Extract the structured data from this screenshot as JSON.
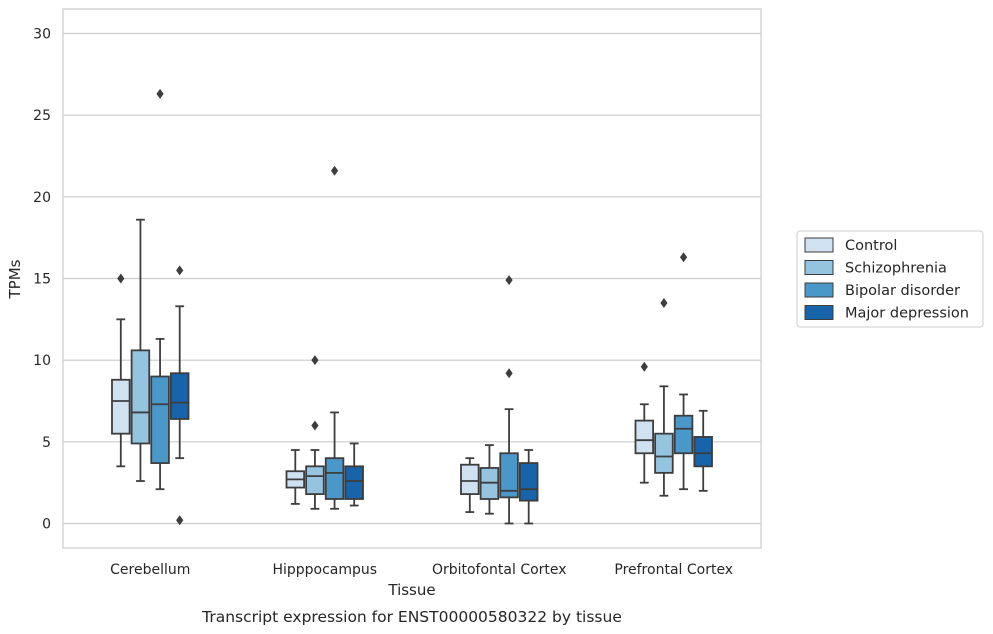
{
  "chart_data": {
    "type": "boxplot",
    "xlabel": "Tissue",
    "ylabel": "TPMs",
    "caption": "Transcript expression for ENST00000580322 by tissue",
    "ylim": [
      -1.5,
      31.5
    ],
    "yticks": [
      0,
      5,
      10,
      15,
      20,
      25,
      30
    ],
    "grid": true,
    "legend_placement": "right",
    "categories": [
      "Cerebellum",
      "Hipppocampus",
      "Orbitofontal Cortex",
      "Prefrontal Cortex"
    ],
    "series": [
      {
        "name": "Control",
        "color": "#d0e1f2",
        "boxes": [
          {
            "whislo": 3.5,
            "q1": 5.5,
            "med": 7.5,
            "q3": 8.8,
            "whishi": 12.5,
            "fliers": [
              15.0
            ]
          },
          {
            "whislo": 1.2,
            "q1": 2.2,
            "med": 2.7,
            "q3": 3.2,
            "whishi": 4.5,
            "fliers": []
          },
          {
            "whislo": 0.7,
            "q1": 1.8,
            "med": 2.6,
            "q3": 3.6,
            "whishi": 4.0,
            "fliers": []
          },
          {
            "whislo": 2.5,
            "q1": 4.3,
            "med": 5.1,
            "q3": 6.3,
            "whishi": 7.3,
            "fliers": [
              9.6
            ]
          }
        ]
      },
      {
        "name": "Schizophrenia",
        "color": "#94c4df",
        "boxes": [
          {
            "whislo": 2.6,
            "q1": 4.9,
            "med": 6.8,
            "q3": 10.6,
            "whishi": 18.6,
            "fliers": []
          },
          {
            "whislo": 0.9,
            "q1": 1.8,
            "med": 2.9,
            "q3": 3.5,
            "whishi": 4.5,
            "fliers": [
              10.0,
              6.0
            ]
          },
          {
            "whislo": 0.6,
            "q1": 1.5,
            "med": 2.5,
            "q3": 3.4,
            "whishi": 4.8,
            "fliers": []
          },
          {
            "whislo": 1.7,
            "q1": 3.1,
            "med": 4.1,
            "q3": 5.5,
            "whishi": 8.4,
            "fliers": [
              13.5
            ]
          }
        ]
      },
      {
        "name": "Bipolar disorder",
        "color": "#4a98c9",
        "boxes": [
          {
            "whislo": 2.1,
            "q1": 3.7,
            "med": 7.3,
            "q3": 9.0,
            "whishi": 11.3,
            "fliers": [
              26.3
            ]
          },
          {
            "whislo": 0.9,
            "q1": 1.5,
            "med": 3.1,
            "q3": 4.0,
            "whishi": 6.8,
            "fliers": [
              21.6
            ]
          },
          {
            "whislo": 0.0,
            "q1": 1.6,
            "med": 2.0,
            "q3": 4.3,
            "whishi": 7.0,
            "fliers": [
              14.9,
              9.2
            ]
          },
          {
            "whislo": 2.1,
            "q1": 4.3,
            "med": 5.8,
            "q3": 6.6,
            "whishi": 7.9,
            "fliers": [
              16.3
            ]
          }
        ]
      },
      {
        "name": "Major depression",
        "color": "#1764ab",
        "boxes": [
          {
            "whislo": 4.0,
            "q1": 6.4,
            "med": 7.4,
            "q3": 9.2,
            "whishi": 13.3,
            "fliers": [
              15.5,
              0.2
            ]
          },
          {
            "whislo": 1.1,
            "q1": 1.5,
            "med": 2.6,
            "q3": 3.5,
            "whishi": 4.9,
            "fliers": []
          },
          {
            "whislo": 0.0,
            "q1": 1.4,
            "med": 2.1,
            "q3": 3.7,
            "whishi": 4.5,
            "fliers": []
          },
          {
            "whislo": 2.0,
            "q1": 3.5,
            "med": 4.3,
            "q3": 5.3,
            "whishi": 6.9,
            "fliers": []
          }
        ]
      }
    ]
  }
}
